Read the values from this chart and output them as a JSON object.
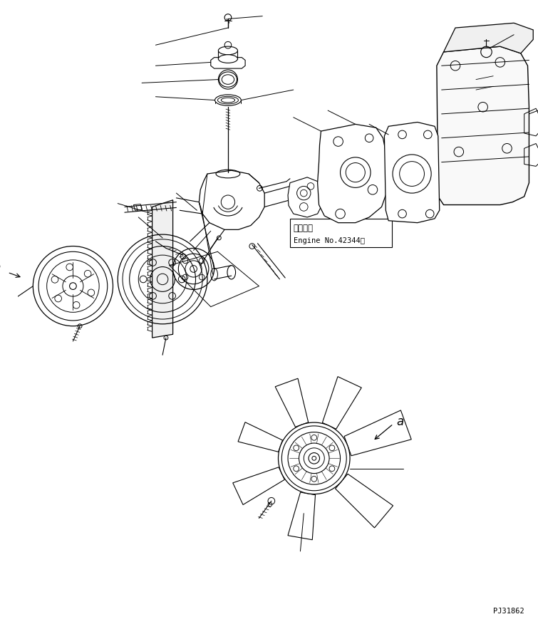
{
  "background_color": "#ffffff",
  "line_color": "#000000",
  "annotation_text_1": "適用号機",
  "annotation_text_2": "Engine No.42344～",
  "label_a": "a",
  "part_number": "PJ31862",
  "fig_width": 7.55,
  "fig_height": 8.97,
  "dpi": 100
}
